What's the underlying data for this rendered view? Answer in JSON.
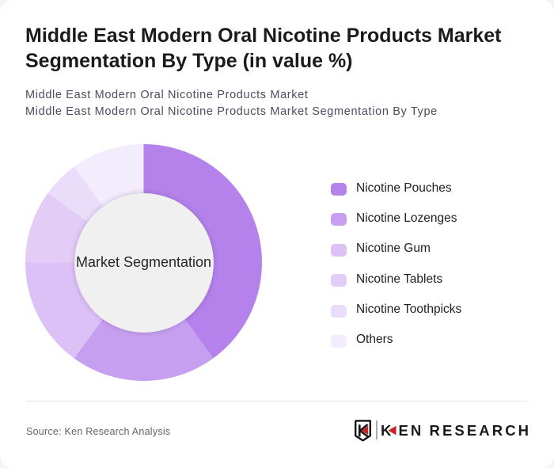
{
  "card": {
    "title": "Middle East Modern Oral Nicotine Products Market Segmentation By Type (in value %)",
    "subtitle_line1": "Middle East Modern Oral Nicotine Products Market",
    "subtitle_line2": "Middle East Modern Oral Nicotine Products Market Segmentation By Type",
    "source_text": "Source: Ken Research Analysis"
  },
  "chart_data": {
    "type": "pie",
    "variant": "donut",
    "title": "Middle East Modern Oral Nicotine Products Market Segmentation By Type (in value %)",
    "center_label": "Market Segmentation",
    "unit": "value %",
    "start_angle_deg": 0,
    "direction": "clockwise",
    "legend_position": "right",
    "hole_color": "#f0f0f0",
    "series": [
      {
        "name": "Nicotine Pouches",
        "value": 40,
        "color": "#b482ea"
      },
      {
        "name": "Nicotine Lozenges",
        "value": 20,
        "color": "#c79ff0"
      },
      {
        "name": "Nicotine Gum",
        "value": 15,
        "color": "#dcc1f6"
      },
      {
        "name": "Nicotine Tablets",
        "value": 10,
        "color": "#e3cdf7"
      },
      {
        "name": "Nicotine Toothpicks",
        "value": 5,
        "color": "#e9ddfa"
      },
      {
        "name": "Others",
        "value": 10,
        "color": "#f3ecfc"
      }
    ]
  },
  "logo": {
    "wordmark_k": "K",
    "wordmark_en": "EN",
    "wordmark_research": "RESEARCH",
    "accent_color": "#c5242b",
    "text_color": "#1a1a1a"
  }
}
